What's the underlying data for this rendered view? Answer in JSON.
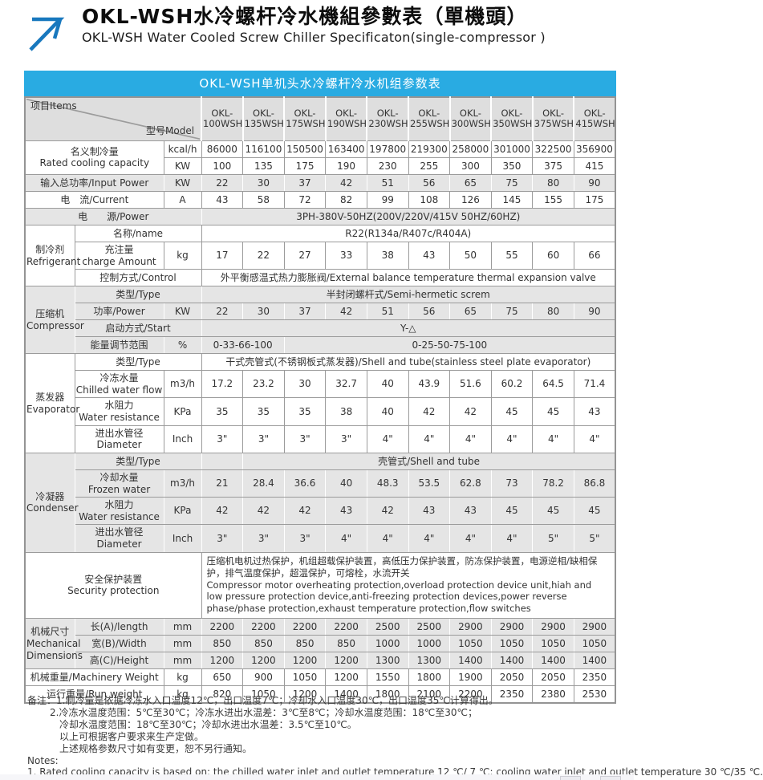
{
  "page": {
    "title_cn": "OKL-WSH水冷螺杆冷水機組參數表（單機頭）",
    "title_en": "OKL-WSH Water Cooled Screw Chiller Specificaton(single-compressor )",
    "accent_color": "#29ABE2"
  },
  "table": {
    "title": "OKL-WSH单机头水冷螺杆冷水机组参数表",
    "header": {
      "items_label": "项目Items",
      "model_label": "型号Model",
      "models": [
        "OKL-100WSH",
        "OKL-135WSH",
        "OKL-175WSH",
        "OKL-190WSH",
        "OKL-230WSH",
        "OKL-255WSH",
        "OKL-300WSH",
        "OKL-350WSH",
        "OKL-375WSH",
        "OKL-415WSH"
      ]
    },
    "rows": [
      {
        "bg": "white",
        "cells": [
          {
            "text": "名义制冷量\nRated cooling capacity",
            "colspan": 2,
            "rowspan": 2,
            "name": "row-label"
          },
          {
            "text": "kcal/h",
            "name": "unit-cell"
          },
          {
            "text": "86000"
          },
          {
            "text": "116100"
          },
          {
            "text": "150500"
          },
          {
            "text": "163400"
          },
          {
            "text": "197800"
          },
          {
            "text": "219300"
          },
          {
            "text": "258000"
          },
          {
            "text": "301000"
          },
          {
            "text": "322500"
          },
          {
            "text": "356900"
          }
        ]
      },
      {
        "bg": "white",
        "cells": [
          {
            "text": "KW",
            "name": "unit-cell"
          },
          {
            "text": "100"
          },
          {
            "text": "135"
          },
          {
            "text": "175"
          },
          {
            "text": "190"
          },
          {
            "text": "230"
          },
          {
            "text": "255"
          },
          {
            "text": "300"
          },
          {
            "text": "350"
          },
          {
            "text": "375"
          },
          {
            "text": "415"
          }
        ]
      },
      {
        "bg": "gray",
        "cells": [
          {
            "text": "输入总功率/Input Power",
            "colspan": 2,
            "name": "row-label"
          },
          {
            "text": "KW",
            "name": "unit-cell"
          },
          {
            "text": "22"
          },
          {
            "text": "30"
          },
          {
            "text": "37"
          },
          {
            "text": "42"
          },
          {
            "text": "51"
          },
          {
            "text": "56"
          },
          {
            "text": "65"
          },
          {
            "text": "75"
          },
          {
            "text": "80"
          },
          {
            "text": "90"
          }
        ]
      },
      {
        "bg": "white",
        "cells": [
          {
            "text": "电　流/Current",
            "colspan": 2,
            "name": "row-label"
          },
          {
            "text": "A",
            "name": "unit-cell"
          },
          {
            "text": "43"
          },
          {
            "text": "58"
          },
          {
            "text": "72"
          },
          {
            "text": "82"
          },
          {
            "text": "99"
          },
          {
            "text": "108"
          },
          {
            "text": "126"
          },
          {
            "text": "145"
          },
          {
            "text": "155"
          },
          {
            "text": "175"
          }
        ]
      },
      {
        "bg": "gray",
        "cells": [
          {
            "text": "电　　源/Power",
            "colspan": 3,
            "name": "row-label"
          },
          {
            "text": "3PH-380V-50HZ(200V/220V/415V  50HZ/60HZ)",
            "colspan": 10
          }
        ]
      },
      {
        "bg": "white",
        "cells": [
          {
            "text": "制冷剂\nRefrigerant",
            "rowspan": 3,
            "cls": "grp",
            "name": "section-label"
          },
          {
            "text": "名称/name",
            "colspan": 2,
            "name": "row-label"
          },
          {
            "text": "R22(R134a/R407c/R404A)",
            "colspan": 10
          }
        ]
      },
      {
        "bg": "white",
        "cells": [
          {
            "text": "充注量\ncharge Amount",
            "name": "row-label"
          },
          {
            "text": "kg",
            "name": "unit-cell"
          },
          {
            "text": "17"
          },
          {
            "text": "22"
          },
          {
            "text": "27"
          },
          {
            "text": "33"
          },
          {
            "text": "38"
          },
          {
            "text": "43"
          },
          {
            "text": "50"
          },
          {
            "text": "55"
          },
          {
            "text": "60"
          },
          {
            "text": "66"
          }
        ]
      },
      {
        "bg": "white",
        "cells": [
          {
            "text": "控制方式/Control",
            "colspan": 2,
            "name": "row-label"
          },
          {
            "text": "外平衡感温式热力膨胀阀/External balance temperature thermal expansion valve",
            "colspan": 10
          }
        ]
      },
      {
        "bg": "gray",
        "cells": [
          {
            "text": "压缩机\nCompressor",
            "rowspan": 4,
            "cls": "grp",
            "name": "section-label"
          },
          {
            "text": "类型/Type",
            "colspan": 2,
            "name": "row-label"
          },
          {
            "text": "半封闭螺杆式/Semi-hermetic screm",
            "colspan": 10
          }
        ]
      },
      {
        "bg": "gray",
        "cells": [
          {
            "text": "功率/Power",
            "name": "row-label"
          },
          {
            "text": "KW",
            "name": "unit-cell"
          },
          {
            "text": "22"
          },
          {
            "text": "30"
          },
          {
            "text": "37"
          },
          {
            "text": "42"
          },
          {
            "text": "51"
          },
          {
            "text": "56"
          },
          {
            "text": "65"
          },
          {
            "text": "75"
          },
          {
            "text": "80"
          },
          {
            "text": "90"
          }
        ]
      },
      {
        "bg": "gray",
        "cells": [
          {
            "text": "启动方式/Start",
            "colspan": 2,
            "name": "row-label"
          },
          {
            "text": "Y-△",
            "colspan": 10
          }
        ]
      },
      {
        "bg": "gray",
        "cells": [
          {
            "text": "能量调节范围",
            "name": "row-label"
          },
          {
            "text": "%",
            "name": "unit-cell"
          },
          {
            "text": "0-33-66-100",
            "colspan": 2
          },
          {
            "text": "0-25-50-75-100",
            "colspan": 8
          }
        ]
      },
      {
        "bg": "white",
        "cells": [
          {
            "text": "蒸发器\nEvaporator",
            "rowspan": 4,
            "cls": "grp",
            "name": "section-label"
          },
          {
            "text": "类型/Type",
            "colspan": 2,
            "name": "row-label"
          },
          {
            "text": "干式壳管式(不锈钢板式蒸发器)/Shell and tube(stainless steel plate evaporator)",
            "colspan": 10
          }
        ]
      },
      {
        "bg": "white",
        "cells": [
          {
            "text": "冷冻水量\nChilled water flow",
            "name": "row-label"
          },
          {
            "text": "m3/h",
            "name": "unit-cell"
          },
          {
            "text": "17.2"
          },
          {
            "text": "23.2"
          },
          {
            "text": "30"
          },
          {
            "text": "32.7"
          },
          {
            "text": "40"
          },
          {
            "text": "43.9"
          },
          {
            "text": "51.6"
          },
          {
            "text": "60.2"
          },
          {
            "text": "64.5"
          },
          {
            "text": "71.4"
          }
        ]
      },
      {
        "bg": "white",
        "cells": [
          {
            "text": "水阻力\nWater resistance",
            "name": "row-label"
          },
          {
            "text": "KPa",
            "name": "unit-cell"
          },
          {
            "text": "35"
          },
          {
            "text": "35"
          },
          {
            "text": "35"
          },
          {
            "text": "38"
          },
          {
            "text": "40"
          },
          {
            "text": "42"
          },
          {
            "text": "42"
          },
          {
            "text": "45"
          },
          {
            "text": "45"
          },
          {
            "text": "43"
          }
        ]
      },
      {
        "bg": "white",
        "cells": [
          {
            "text": "进出水管径\nDiameter",
            "name": "row-label"
          },
          {
            "text": "Inch",
            "name": "unit-cell"
          },
          {
            "text": "3\""
          },
          {
            "text": "3\""
          },
          {
            "text": "3\""
          },
          {
            "text": "3\""
          },
          {
            "text": "4\""
          },
          {
            "text": "4\""
          },
          {
            "text": "4\""
          },
          {
            "text": "4\""
          },
          {
            "text": "4\""
          },
          {
            "text": "4\""
          }
        ]
      },
      {
        "bg": "gray",
        "cells": [
          {
            "text": "冷凝器\nCondenser",
            "rowspan": 4,
            "cls": "grp",
            "name": "section-label"
          },
          {
            "text": "类型/Type",
            "colspan": 2,
            "name": "row-label"
          },
          {
            "text": ""
          },
          {
            "text": "壳管式/Shell and tube",
            "colspan": 9
          }
        ]
      },
      {
        "bg": "gray",
        "cells": [
          {
            "text": "冷却水量\nFrozen water",
            "name": "row-label"
          },
          {
            "text": "m3/h",
            "name": "unit-cell"
          },
          {
            "text": "21"
          },
          {
            "text": "28.4"
          },
          {
            "text": "36.6"
          },
          {
            "text": "40"
          },
          {
            "text": "48.3"
          },
          {
            "text": "53.5"
          },
          {
            "text": "62.8"
          },
          {
            "text": "73"
          },
          {
            "text": "78.2"
          },
          {
            "text": "86.8"
          }
        ]
      },
      {
        "bg": "gray",
        "cells": [
          {
            "text": "水阻力\nWater resistance",
            "name": "row-label"
          },
          {
            "text": "KPa",
            "name": "unit-cell"
          },
          {
            "text": "42"
          },
          {
            "text": "42"
          },
          {
            "text": "42"
          },
          {
            "text": "43"
          },
          {
            "text": "42"
          },
          {
            "text": "43"
          },
          {
            "text": "43"
          },
          {
            "text": "45"
          },
          {
            "text": "45"
          },
          {
            "text": "45"
          }
        ]
      },
      {
        "bg": "gray",
        "cells": [
          {
            "text": "进出水管径\nDiameter",
            "name": "row-label"
          },
          {
            "text": "Inch",
            "name": "unit-cell"
          },
          {
            "text": "3\""
          },
          {
            "text": "3\""
          },
          {
            "text": "3\""
          },
          {
            "text": "4\""
          },
          {
            "text": "4\""
          },
          {
            "text": "4\""
          },
          {
            "text": "4\""
          },
          {
            "text": "4\""
          },
          {
            "text": "5\""
          },
          {
            "text": "5\""
          }
        ]
      },
      {
        "bg": "white",
        "cells": [
          {
            "text": "安全保护装置\nSecurity protection",
            "colspan": 3,
            "name": "row-label"
          },
          {
            "text": "压缩机电机过热保护，机组超载保护装置，高低压力保护装置，防冻保护装置，电源逆相/缺相保护，排气温度保护，超温保护，可熔栓，水流开关\n  Compressor motor overheating protection,overload protection device unit,hiah and low pressure protection device,anti-freezing protection devices,power reverse phase/phase protection,exhaust temperature protection,flow switches",
            "colspan": 10,
            "cls": "left"
          }
        ]
      },
      {
        "bg": "gray",
        "cells": [
          {
            "text": "机械尺寸\nMechanical\nDimensions",
            "rowspan": 3,
            "cls": "grp",
            "name": "section-label"
          },
          {
            "text": "长(A)/length",
            "name": "row-label"
          },
          {
            "text": "mm",
            "name": "unit-cell"
          },
          {
            "text": "2200"
          },
          {
            "text": "2200"
          },
          {
            "text": "2200"
          },
          {
            "text": "2200"
          },
          {
            "text": "2500"
          },
          {
            "text": "2500"
          },
          {
            "text": "2900"
          },
          {
            "text": "2900"
          },
          {
            "text": "2900"
          },
          {
            "text": "2900"
          }
        ]
      },
      {
        "bg": "gray",
        "cells": [
          {
            "text": "宽(B)/Width",
            "name": "row-label"
          },
          {
            "text": "mm",
            "name": "unit-cell"
          },
          {
            "text": "850"
          },
          {
            "text": "850"
          },
          {
            "text": "850"
          },
          {
            "text": "850"
          },
          {
            "text": "1000"
          },
          {
            "text": "1000"
          },
          {
            "text": "1050"
          },
          {
            "text": "1050"
          },
          {
            "text": "1050"
          },
          {
            "text": "1050"
          }
        ]
      },
      {
        "bg": "gray",
        "cells": [
          {
            "text": "高(C)/Height",
            "name": "row-label"
          },
          {
            "text": "mm",
            "name": "unit-cell"
          },
          {
            "text": "1200"
          },
          {
            "text": "1200"
          },
          {
            "text": "1200"
          },
          {
            "text": "1200"
          },
          {
            "text": "1300"
          },
          {
            "text": "1300"
          },
          {
            "text": "1400"
          },
          {
            "text": "1400"
          },
          {
            "text": "1400"
          },
          {
            "text": "1400"
          }
        ]
      },
      {
        "bg": "white",
        "cells": [
          {
            "text": "机械重量/Machinery Weight",
            "colspan": 2,
            "name": "row-label"
          },
          {
            "text": "kg",
            "name": "unit-cell"
          },
          {
            "text": "650"
          },
          {
            "text": "900"
          },
          {
            "text": "1050"
          },
          {
            "text": "1200"
          },
          {
            "text": "1550"
          },
          {
            "text": "1800"
          },
          {
            "text": "1900"
          },
          {
            "text": "2050"
          },
          {
            "text": "2050"
          },
          {
            "text": "2350"
          }
        ]
      },
      {
        "bg": "white",
        "cells": [
          {
            "text": "运行重量/Run weight",
            "colspan": 2,
            "name": "row-label"
          },
          {
            "text": "kg",
            "name": "unit-cell"
          },
          {
            "text": "820"
          },
          {
            "text": "1050"
          },
          {
            "text": "1200"
          },
          {
            "text": "1400"
          },
          {
            "text": "1800"
          },
          {
            "text": "2100"
          },
          {
            "text": "2200"
          },
          {
            "text": "2350"
          },
          {
            "text": "2380"
          },
          {
            "text": "2530"
          }
        ]
      }
    ]
  },
  "notes": {
    "lines": [
      "备注：1.制冷量是依据冷冻水入口温度12℃，出口温度7℃；冷却水入口温度30℃，出口温度35℃计算得出。",
      "2.冷冻水温度范围：5℃至30℃；冷冻水进出水温差：3℃至8℃；冷却水温度范围：18℃至30℃；",
      "冷却水温度范围：18℃至30℃；冷却水进出水温差：3.5℃至10℃。",
      "以上可根据客户要求来生产定做。",
      "上述规格参数尺寸如有变更，恕不另行通知。",
      "Notes:",
      "1. Rated cooling capacity is based on: the chilled water inlet and outlet temperature 12 ℃/ 7 ℃; cooling water inlet and outlet temperature 30 ℃/35 ℃."
    ]
  }
}
